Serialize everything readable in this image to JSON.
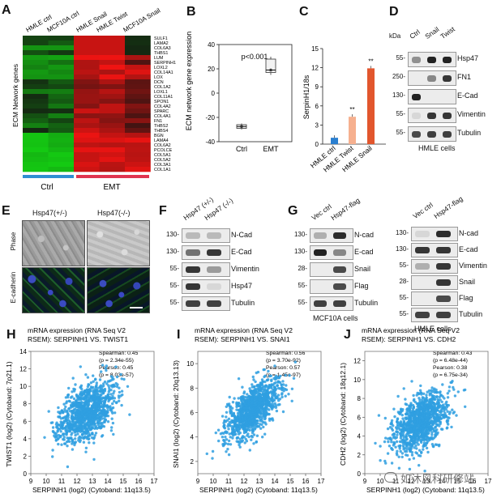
{
  "panels": {
    "A": "A",
    "B": "B",
    "C": "C",
    "D": "D",
    "E": "E",
    "F": "F",
    "G": "G",
    "H": "H",
    "I": "I",
    "J": "J"
  },
  "panelA": {
    "column_labels": [
      "HMLE ctrl",
      "MCF10A ctrl",
      "HMLE Snail",
      "HMLE Twist",
      "MCF10A Snail"
    ],
    "row_labels": [
      "SULF1",
      "LAMA2",
      "COL6A3",
      "THBS1",
      "LUM",
      "SERPINH1",
      "LOXL2",
      "COL14A1",
      "LOX",
      "DCN",
      "COL1A2",
      "LOXL1",
      "COL11A1",
      "SPON1",
      "COL4A2",
      "SPARC",
      "COL4A1",
      "FN1",
      "THBS2",
      "THBS4",
      "BGN",
      "LAMA4",
      "COL6A2",
      "PCOLCE",
      "COL5A1",
      "COL5A2",
      "COL3A1",
      "COL1A1"
    ],
    "side_label": "ECM Network genes",
    "group_labels": [
      "Ctrl",
      "EMT"
    ],
    "colors": {
      "ctrl_bar": "#2f8fd3",
      "emt_bar": "#e0344f",
      "high": "#e81d1d",
      "low": "#18b31a"
    }
  },
  "panelB": {
    "annotation": "p<0.001",
    "chart_data": {
      "type": "box",
      "categories": [
        "Ctrl",
        "EMT"
      ],
      "ylabel": "ECM network gene expression",
      "ylim": [
        -40,
        40
      ],
      "yticks": [
        "40",
        "20",
        "0",
        "-20",
        "-40"
      ],
      "boxes": [
        {
          "name": "Ctrl",
          "min": -30,
          "q1": -29,
          "median": -27.5,
          "q3": -26,
          "max": -25
        },
        {
          "name": "EMT",
          "min": 15,
          "q1": 17,
          "median": 19,
          "q3": 28,
          "max": 30
        }
      ]
    }
  },
  "panelC": {
    "chart_data": {
      "type": "bar",
      "categories": [
        "HMLE ctrl",
        "HMLE Twist",
        "HMLE Snail"
      ],
      "values": [
        1.0,
        4.3,
        11.9
      ],
      "colors": [
        "#2a7fd0",
        "#f6b08f",
        "#e2562d"
      ],
      "significance": [
        "",
        "**",
        "**"
      ],
      "ylabel": "SerpinH1/18s",
      "ylim": [
        0,
        15
      ],
      "yticks": [
        "15",
        "12",
        "9",
        "6",
        "3",
        "0"
      ]
    }
  },
  "panelD": {
    "kda_label": "kDa",
    "lanes": [
      "Ctrl",
      "Snail",
      "Twist"
    ],
    "rows": [
      {
        "marker": "55-",
        "protein": "Hsp47"
      },
      {
        "marker": "250-",
        "protein": "FN1"
      },
      {
        "marker": "130-",
        "protein": "E-Cad"
      },
      {
        "marker": "55-",
        "protein": "Vimentin"
      },
      {
        "marker": "55-",
        "protein": "Tubulin"
      }
    ],
    "cell_label": "HMLE cells"
  },
  "panelE": {
    "columns": [
      "Hsp47(+/-)",
      "Hsp47(-/-)"
    ],
    "rows": [
      "Phase",
      "E-cadherin"
    ]
  },
  "panelF": {
    "lanes": [
      "Hsp47 (+/-)",
      "Hsp47 (-/-)"
    ],
    "rows": [
      {
        "marker": "130-",
        "protein": "N-Cad"
      },
      {
        "marker": "130-",
        "protein": "E-Cad"
      },
      {
        "marker": "55-",
        "protein": "Vimentin"
      },
      {
        "marker": "55-",
        "protein": "Hsp47"
      },
      {
        "marker": "55-",
        "protein": "Tubulin"
      }
    ]
  },
  "panelG": {
    "left": {
      "lanes": [
        "Vec ctrl",
        "Hsp47-flag"
      ],
      "rows": [
        {
          "marker": "130-",
          "protein": "N-cad"
        },
        {
          "marker": "130-",
          "protein": "E-cad"
        },
        {
          "marker": "28-",
          "protein": "Snail"
        },
        {
          "marker": "55-",
          "protein": "Flag"
        },
        {
          "marker": "55-",
          "protein": "Tubulin"
        }
      ],
      "cell_label": "MCF10A cells"
    },
    "right": {
      "lanes": [
        "Vec ctrl",
        "Hsp47-flag"
      ],
      "rows": [
        {
          "marker": "130-",
          "protein": "N-cad"
        },
        {
          "marker": "130-",
          "protein": "E-cad"
        },
        {
          "marker": "55-",
          "protein": "Vimentin"
        },
        {
          "marker": "28-",
          "protein": "Snail"
        },
        {
          "marker": "55-",
          "protein": "Flag"
        },
        {
          "marker": "55-",
          "protein": "Tubulin"
        }
      ],
      "cell_label": "HMLE cells"
    }
  },
  "scatters": [
    {
      "title1": "mRNA expression (RNA Seq V2",
      "title2": "RSEM): SERPINH1 VS. TWIST1",
      "stats": [
        "Spearman: 0.45",
        "(p = 2.34e-55)",
        "Pearson: 0.45",
        "(p = 8.03e-57)"
      ],
      "chart_data": {
        "type": "scatter",
        "xlabel": "SERPINH1 (log2) (Cytoband: 11q13.5)",
        "ylabel": "TWIST1 (log2) (Cytoband: 7p21.1)",
        "xticks": [
          "9",
          "10",
          "11",
          "12",
          "13",
          "14",
          "15",
          "16",
          "17"
        ],
        "yticks": [
          "0",
          "2",
          "4",
          "6",
          "8",
          "10",
          "12",
          "14"
        ],
        "xlim": [
          9,
          17
        ],
        "ylim": [
          0,
          14
        ],
        "center": [
          12.6,
          7.0
        ],
        "spread": [
          0.9,
          1.9
        ],
        "slope": 0.9,
        "n": 1100
      }
    },
    {
      "title1": "mRNA expression (RNA Seq V2",
      "title2": "RSEM): SERPINH1 VS. SNAI1",
      "stats": [
        "Spearman: 0.56",
        "(p = 3.70e-92)",
        "Pearson: 0.57",
        "(p = 1.45e-97)"
      ],
      "chart_data": {
        "type": "scatter",
        "xlabel": "SERPINH1 (log2) (Cytoband: 11q13.5)",
        "ylabel": "SNAI1 (log2) (Cytoband: 20q13.13)",
        "xticks": [
          "9",
          "10",
          "11",
          "12",
          "13",
          "14",
          "15",
          "16",
          "17"
        ],
        "yticks": [
          "2",
          "4",
          "6",
          "8",
          "10"
        ],
        "xlim": [
          9,
          17
        ],
        "ylim": [
          1,
          11
        ],
        "center": [
          12.6,
          6.3
        ],
        "spread": [
          0.9,
          1.2
        ],
        "slope": 0.9,
        "n": 1100
      }
    },
    {
      "title1": "mRNA expression (RNA Seq V2",
      "title2": "RSEM): SERPINH1 VS. CDH2",
      "stats": [
        "Spearman: 0.43",
        "(p = 6.48e-44)",
        "Pearson: 0.38",
        "(p = 6.75e-34)"
      ],
      "chart_data": {
        "type": "scatter",
        "xlabel": "SERPINH1 (log2) (Cytoband: 11q13.5)",
        "ylabel": "CDH2 (log2) (Cytoband: 18q12.1)",
        "xticks": [
          "9",
          "10",
          "11",
          "12",
          "13",
          "14",
          "15",
          "16",
          "17"
        ],
        "yticks": [
          "0",
          "2",
          "4",
          "6",
          "8",
          "10",
          "12"
        ],
        "xlim": [
          9,
          17
        ],
        "ylim": [
          0,
          13
        ],
        "center": [
          12.6,
          5.5
        ],
        "spread": [
          0.9,
          1.8
        ],
        "slope": 0.9,
        "n": 1100
      }
    }
  ],
  "watermark": "如沐风科研修站"
}
